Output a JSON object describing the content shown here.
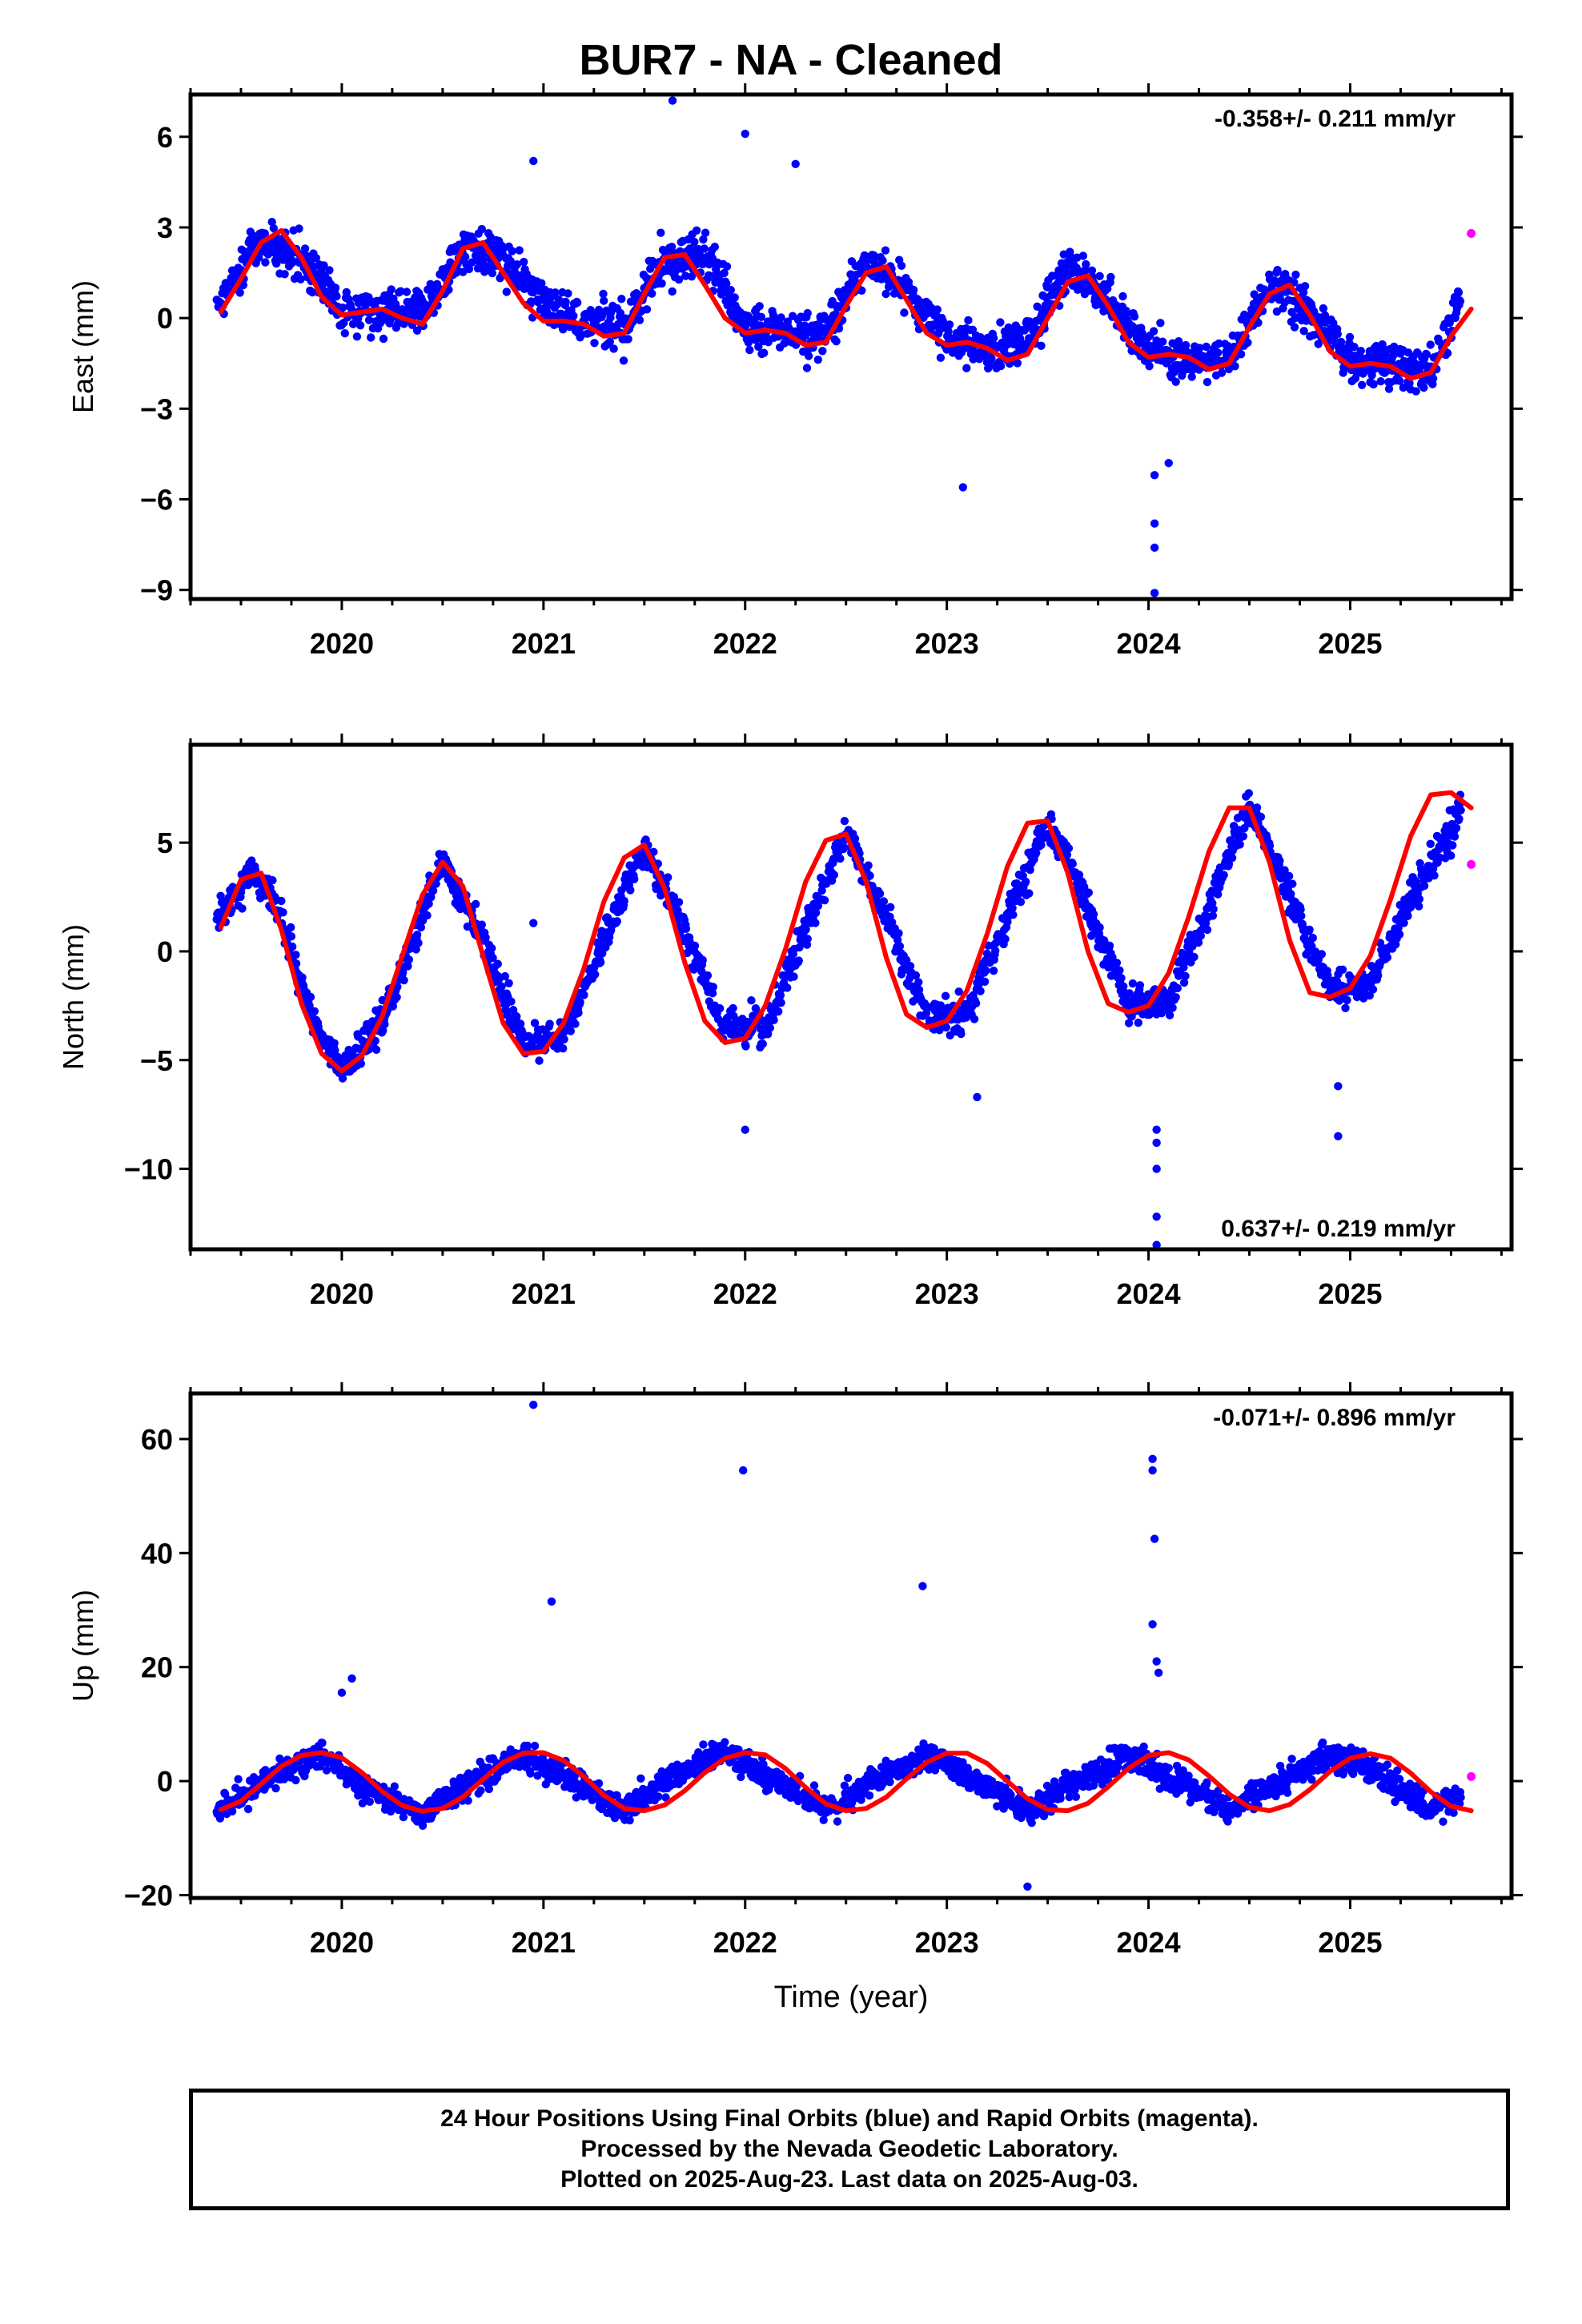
{
  "title": "BUR7  - NA - Cleaned",
  "footer": {
    "lines": [
      "24 Hour Positions Using Final Orbits (blue) and Rapid Orbits (magenta).",
      "Processed by the Nevada Geodetic Laboratory.",
      "Plotted on 2025-Aug-23. Last data on 2025-Aug-03."
    ]
  },
  "colors": {
    "final_orbits": "#0000ff",
    "rapid_orbits": "#ff00ff",
    "model": "#ff0000",
    "frame": "#000000"
  },
  "chart_data": [
    {
      "type": "scatter",
      "panel": "east",
      "title": "",
      "xlabel": "",
      "ylabel": "East (mm)",
      "xlim": [
        2019.25,
        2025.8
      ],
      "ylim": [
        -9.3,
        7.4
      ],
      "x_ticks": [
        2020,
        2021,
        2022,
        2023,
        2024,
        2025
      ],
      "y_ticks": [
        6,
        3,
        0,
        -3,
        -6,
        -9
      ],
      "y_tick_labels": [
        "6",
        "3",
        "0",
        "−3",
        "−6",
        "−9"
      ],
      "rate_label": "-0.358+/- 0.211 mm/yr",
      "rate_label_position": "top-right",
      "grid": false,
      "series": [
        {
          "role": "final_orbits",
          "x_start": 2019.38,
          "x_end": 2025.55,
          "envelope_x": [
            2019.4,
            2019.6,
            2019.8,
            2020.0,
            2020.2,
            2020.4,
            2020.6,
            2020.8,
            2021.0,
            2021.2,
            2021.4,
            2021.6,
            2021.8,
            2022.0,
            2022.2,
            2022.4,
            2022.6,
            2022.8,
            2023.0,
            2023.2,
            2023.4,
            2023.6,
            2023.8,
            2024.0,
            2024.2,
            2024.4,
            2024.6,
            2024.8,
            2025.0,
            2025.2,
            2025.4,
            2025.55
          ],
          "envelope_y": [
            0.5,
            2.5,
            2.0,
            0.3,
            0.2,
            0.2,
            2.3,
            2.0,
            0.5,
            -0.2,
            -0.3,
            2.0,
            2.2,
            -0.3,
            -0.5,
            -0.4,
            1.8,
            1.0,
            -0.6,
            -1.0,
            -0.8,
            1.7,
            0.6,
            -1.0,
            -1.4,
            -1.3,
            1.0,
            0.2,
            -1.4,
            -1.6,
            -1.8,
            0.5
          ],
          "spread": 1.4,
          "outliers": [
            [
              2021.64,
              7.2
            ],
            [
              2022.0,
              6.1
            ],
            [
              2020.95,
              5.2
            ],
            [
              2022.25,
              5.1
            ],
            [
              2024.03,
              -6.8
            ],
            [
              2024.03,
              -7.6
            ],
            [
              2024.03,
              -9.1
            ],
            [
              2024.03,
              -5.2
            ],
            [
              2023.08,
              -5.6
            ],
            [
              2024.1,
              -4.8
            ]
          ]
        },
        {
          "role": "rapid_orbits",
          "points": [
            [
              2025.6,
              2.8
            ]
          ]
        },
        {
          "role": "model",
          "x": [
            2019.4,
            2019.5,
            2019.6,
            2019.7,
            2019.8,
            2019.9,
            2020.0,
            2020.1,
            2020.2,
            2020.3,
            2020.4,
            2020.5,
            2020.6,
            2020.7,
            2020.8,
            2020.9,
            2021.0,
            2021.1,
            2021.2,
            2021.3,
            2021.4,
            2021.5,
            2021.6,
            2021.7,
            2021.8,
            2021.9,
            2022.0,
            2022.1,
            2022.2,
            2022.3,
            2022.4,
            2022.5,
            2022.6,
            2022.7,
            2022.8,
            2022.9,
            2023.0,
            2023.1,
            2023.2,
            2023.3,
            2023.4,
            2023.5,
            2023.6,
            2023.7,
            2023.8,
            2023.9,
            2024.0,
            2024.1,
            2024.2,
            2024.3,
            2024.4,
            2024.5,
            2024.6,
            2024.7,
            2024.8,
            2024.9,
            2025.0,
            2025.1,
            2025.2,
            2025.3,
            2025.4,
            2025.5,
            2025.6
          ],
          "y": [
            0.2,
            1.3,
            2.5,
            2.9,
            2.0,
            0.7,
            0.1,
            0.2,
            0.3,
            0.0,
            -0.2,
            0.9,
            2.3,
            2.5,
            1.5,
            0.5,
            -0.1,
            -0.1,
            -0.2,
            -0.6,
            -0.5,
            0.8,
            2.0,
            2.1,
            1.1,
            0.0,
            -0.5,
            -0.4,
            -0.5,
            -0.9,
            -0.8,
            0.4,
            1.5,
            1.7,
            0.6,
            -0.5,
            -0.9,
            -0.8,
            -1.0,
            -1.4,
            -1.2,
            0.0,
            1.2,
            1.4,
            0.4,
            -0.8,
            -1.3,
            -1.2,
            -1.3,
            -1.7,
            -1.5,
            -0.3,
            0.8,
            1.1,
            0.1,
            -1.1,
            -1.6,
            -1.5,
            -1.6,
            -2.0,
            -1.8,
            -0.6,
            0.3
          ]
        }
      ]
    },
    {
      "type": "scatter",
      "panel": "north",
      "title": "",
      "xlabel": "",
      "ylabel": "North (mm)",
      "xlim": [
        2019.25,
        2025.8
      ],
      "ylim": [
        -13.7,
        9.5
      ],
      "x_ticks": [
        2020,
        2021,
        2022,
        2023,
        2024,
        2025
      ],
      "y_ticks": [
        5,
        0,
        -5,
        -10
      ],
      "y_tick_labels": [
        "5",
        "0",
        "−5",
        "−10"
      ],
      "rate_label": "0.637+/- 0.219 mm/yr",
      "rate_label_position": "bottom-right",
      "grid": false,
      "series": [
        {
          "role": "final_orbits",
          "x_start": 2019.38,
          "x_end": 2025.55,
          "envelope_x": [
            2019.4,
            2019.55,
            2019.7,
            2019.85,
            2020.0,
            2020.15,
            2020.3,
            2020.5,
            2020.7,
            2020.9,
            2021.1,
            2021.3,
            2021.5,
            2021.7,
            2021.9,
            2022.1,
            2022.3,
            2022.5,
            2022.7,
            2022.9,
            2023.1,
            2023.3,
            2023.5,
            2023.7,
            2023.9,
            2024.1,
            2024.3,
            2024.5,
            2024.7,
            2024.9,
            2025.1,
            2025.3,
            2025.55
          ],
          "envelope_y": [
            1.5,
            3.8,
            1.5,
            -3.0,
            -5.4,
            -4.0,
            -1.0,
            4.2,
            0.5,
            -4.2,
            -4.0,
            0.5,
            4.8,
            1.0,
            -3.6,
            -3.5,
            1.0,
            5.4,
            1.5,
            -3.0,
            -2.8,
            1.5,
            6.0,
            2.0,
            -2.5,
            -2.3,
            2.0,
            6.7,
            2.5,
            -1.8,
            -1.5,
            2.5,
            6.5
          ],
          "spread": 1.5,
          "outliers": [
            [
              2024.04,
              -8.2
            ],
            [
              2024.04,
              -8.8
            ],
            [
              2024.04,
              -10.0
            ],
            [
              2024.04,
              -12.2
            ],
            [
              2024.04,
              -13.5
            ],
            [
              2024.94,
              -6.2
            ],
            [
              2024.94,
              -8.5
            ],
            [
              2022.0,
              -8.2
            ],
            [
              2023.15,
              -6.7
            ],
            [
              2020.95,
              1.3
            ]
          ]
        },
        {
          "role": "rapid_orbits",
          "points": [
            [
              2025.6,
              4.0
            ]
          ]
        },
        {
          "role": "model",
          "x": [
            2019.4,
            2019.5,
            2019.6,
            2019.7,
            2019.8,
            2019.9,
            2020.0,
            2020.1,
            2020.2,
            2020.3,
            2020.4,
            2020.5,
            2020.6,
            2020.7,
            2020.8,
            2020.9,
            2021.0,
            2021.1,
            2021.2,
            2021.3,
            2021.4,
            2021.5,
            2021.6,
            2021.7,
            2021.8,
            2021.9,
            2022.0,
            2022.1,
            2022.2,
            2022.3,
            2022.4,
            2022.5,
            2022.6,
            2022.7,
            2022.8,
            2022.9,
            2023.0,
            2023.1,
            2023.2,
            2023.3,
            2023.4,
            2023.5,
            2023.6,
            2023.7,
            2023.8,
            2023.9,
            2024.0,
            2024.1,
            2024.2,
            2024.3,
            2024.4,
            2024.5,
            2024.6,
            2024.7,
            2024.8,
            2024.9,
            2025.0,
            2025.1,
            2025.2,
            2025.3,
            2025.4,
            2025.5,
            2025.6
          ],
          "y": [
            1.1,
            3.3,
            3.6,
            1.0,
            -2.4,
            -4.7,
            -5.5,
            -4.8,
            -3.0,
            -0.2,
            2.6,
            4.1,
            3.0,
            -0.2,
            -3.3,
            -4.7,
            -4.6,
            -3.3,
            -0.8,
            2.3,
            4.3,
            4.9,
            2.9,
            -0.5,
            -3.2,
            -4.2,
            -4.0,
            -2.5,
            0.1,
            3.2,
            5.1,
            5.4,
            3.2,
            -0.3,
            -2.9,
            -3.5,
            -3.2,
            -1.8,
            0.8,
            3.9,
            5.9,
            6.0,
            3.6,
            0.0,
            -2.4,
            -2.8,
            -2.5,
            -1.0,
            1.6,
            4.6,
            6.6,
            6.6,
            4.1,
            0.5,
            -1.9,
            -2.1,
            -1.7,
            -0.2,
            2.4,
            5.3,
            7.2,
            7.3,
            6.6
          ]
        }
      ]
    },
    {
      "type": "scatter",
      "panel": "up",
      "title": "",
      "xlabel": "Time (year)",
      "ylabel": "Up (mm)",
      "xlim": [
        2019.25,
        2025.8
      ],
      "ylim": [
        -20.5,
        68
      ],
      "x_ticks": [
        2020,
        2021,
        2022,
        2023,
        2024,
        2025
      ],
      "y_ticks": [
        60,
        40,
        20,
        0,
        -20
      ],
      "y_tick_labels": [
        "60",
        "40",
        "20",
        "0",
        "−20"
      ],
      "rate_label": "-0.071+/- 0.896 mm/yr",
      "rate_label_position": "top-right",
      "grid": false,
      "series": [
        {
          "role": "final_orbits",
          "x_start": 2019.38,
          "x_end": 2025.55,
          "envelope_x": [
            2019.4,
            2019.6,
            2019.9,
            2020.1,
            2020.4,
            2020.6,
            2020.9,
            2021.1,
            2021.4,
            2021.6,
            2021.9,
            2022.1,
            2022.4,
            2022.6,
            2022.9,
            2023.1,
            2023.4,
            2023.6,
            2023.9,
            2024.1,
            2024.4,
            2024.6,
            2024.9,
            2025.1,
            2025.4,
            2025.55
          ],
          "envelope_y": [
            -5.0,
            0.0,
            4.5,
            -1.0,
            -6.0,
            -1.0,
            4.5,
            1.0,
            -5.0,
            0.0,
            5.0,
            1.0,
            -5.0,
            -1.0,
            5.0,
            1.0,
            -5.5,
            -1.0,
            4.5,
            1.0,
            -5.0,
            -1.0,
            4.5,
            2.0,
            -5.0,
            -2.0
          ],
          "spread": 4.5,
          "outliers": [
            [
              2020.95,
              66.0
            ],
            [
              2021.04,
              31.5
            ],
            [
              2021.99,
              54.5
            ],
            [
              2022.88,
              34.2
            ],
            [
              2024.02,
              56.5
            ],
            [
              2024.02,
              54.5
            ],
            [
              2024.03,
              42.5
            ],
            [
              2024.02,
              27.5
            ],
            [
              2024.04,
              21.0
            ],
            [
              2024.05,
              19.0
            ],
            [
              2020.05,
              18.0
            ],
            [
              2023.4,
              -18.5
            ],
            [
              2020.0,
              15.5
            ]
          ]
        },
        {
          "role": "rapid_orbits",
          "points": [
            [
              2025.6,
              0.8
            ]
          ]
        },
        {
          "role": "model",
          "x": [
            2019.4,
            2019.5,
            2019.6,
            2019.7,
            2019.8,
            2019.9,
            2020.0,
            2020.1,
            2020.2,
            2020.3,
            2020.4,
            2020.5,
            2020.6,
            2020.7,
            2020.8,
            2020.9,
            2021.0,
            2021.1,
            2021.2,
            2021.3,
            2021.4,
            2021.5,
            2021.6,
            2021.7,
            2021.8,
            2021.9,
            2022.0,
            2022.1,
            2022.2,
            2022.3,
            2022.4,
            2022.5,
            2022.6,
            2022.7,
            2022.8,
            2022.9,
            2023.0,
            2023.1,
            2023.2,
            2023.3,
            2023.4,
            2023.5,
            2023.6,
            2023.7,
            2023.8,
            2023.9,
            2024.0,
            2024.1,
            2024.2,
            2024.3,
            2024.4,
            2024.5,
            2024.6,
            2024.7,
            2024.8,
            2024.9,
            2025.0,
            2025.1,
            2025.2,
            2025.3,
            2025.4,
            2025.5,
            2025.6
          ],
          "y": [
            -5.0,
            -3.5,
            -0.5,
            2.6,
            4.5,
            5.0,
            4.1,
            1.5,
            -1.8,
            -4.3,
            -5.3,
            -4.8,
            -2.8,
            0.3,
            3.3,
            4.9,
            5.0,
            3.6,
            0.8,
            -2.5,
            -4.8,
            -5.2,
            -4.2,
            -1.7,
            1.5,
            4.0,
            5.0,
            4.6,
            2.2,
            -1.1,
            -4.0,
            -5.2,
            -4.8,
            -2.8,
            0.4,
            3.3,
            4.9,
            4.9,
            3.1,
            0.0,
            -3.1,
            -5.0,
            -5.2,
            -3.9,
            -1.0,
            2.2,
            4.5,
            5.0,
            3.7,
            0.9,
            -2.3,
            -4.6,
            -5.2,
            -4.1,
            -1.5,
            1.7,
            4.0,
            4.8,
            4.0,
            1.4,
            -1.9,
            -4.4,
            -5.2
          ]
        }
      ]
    }
  ]
}
